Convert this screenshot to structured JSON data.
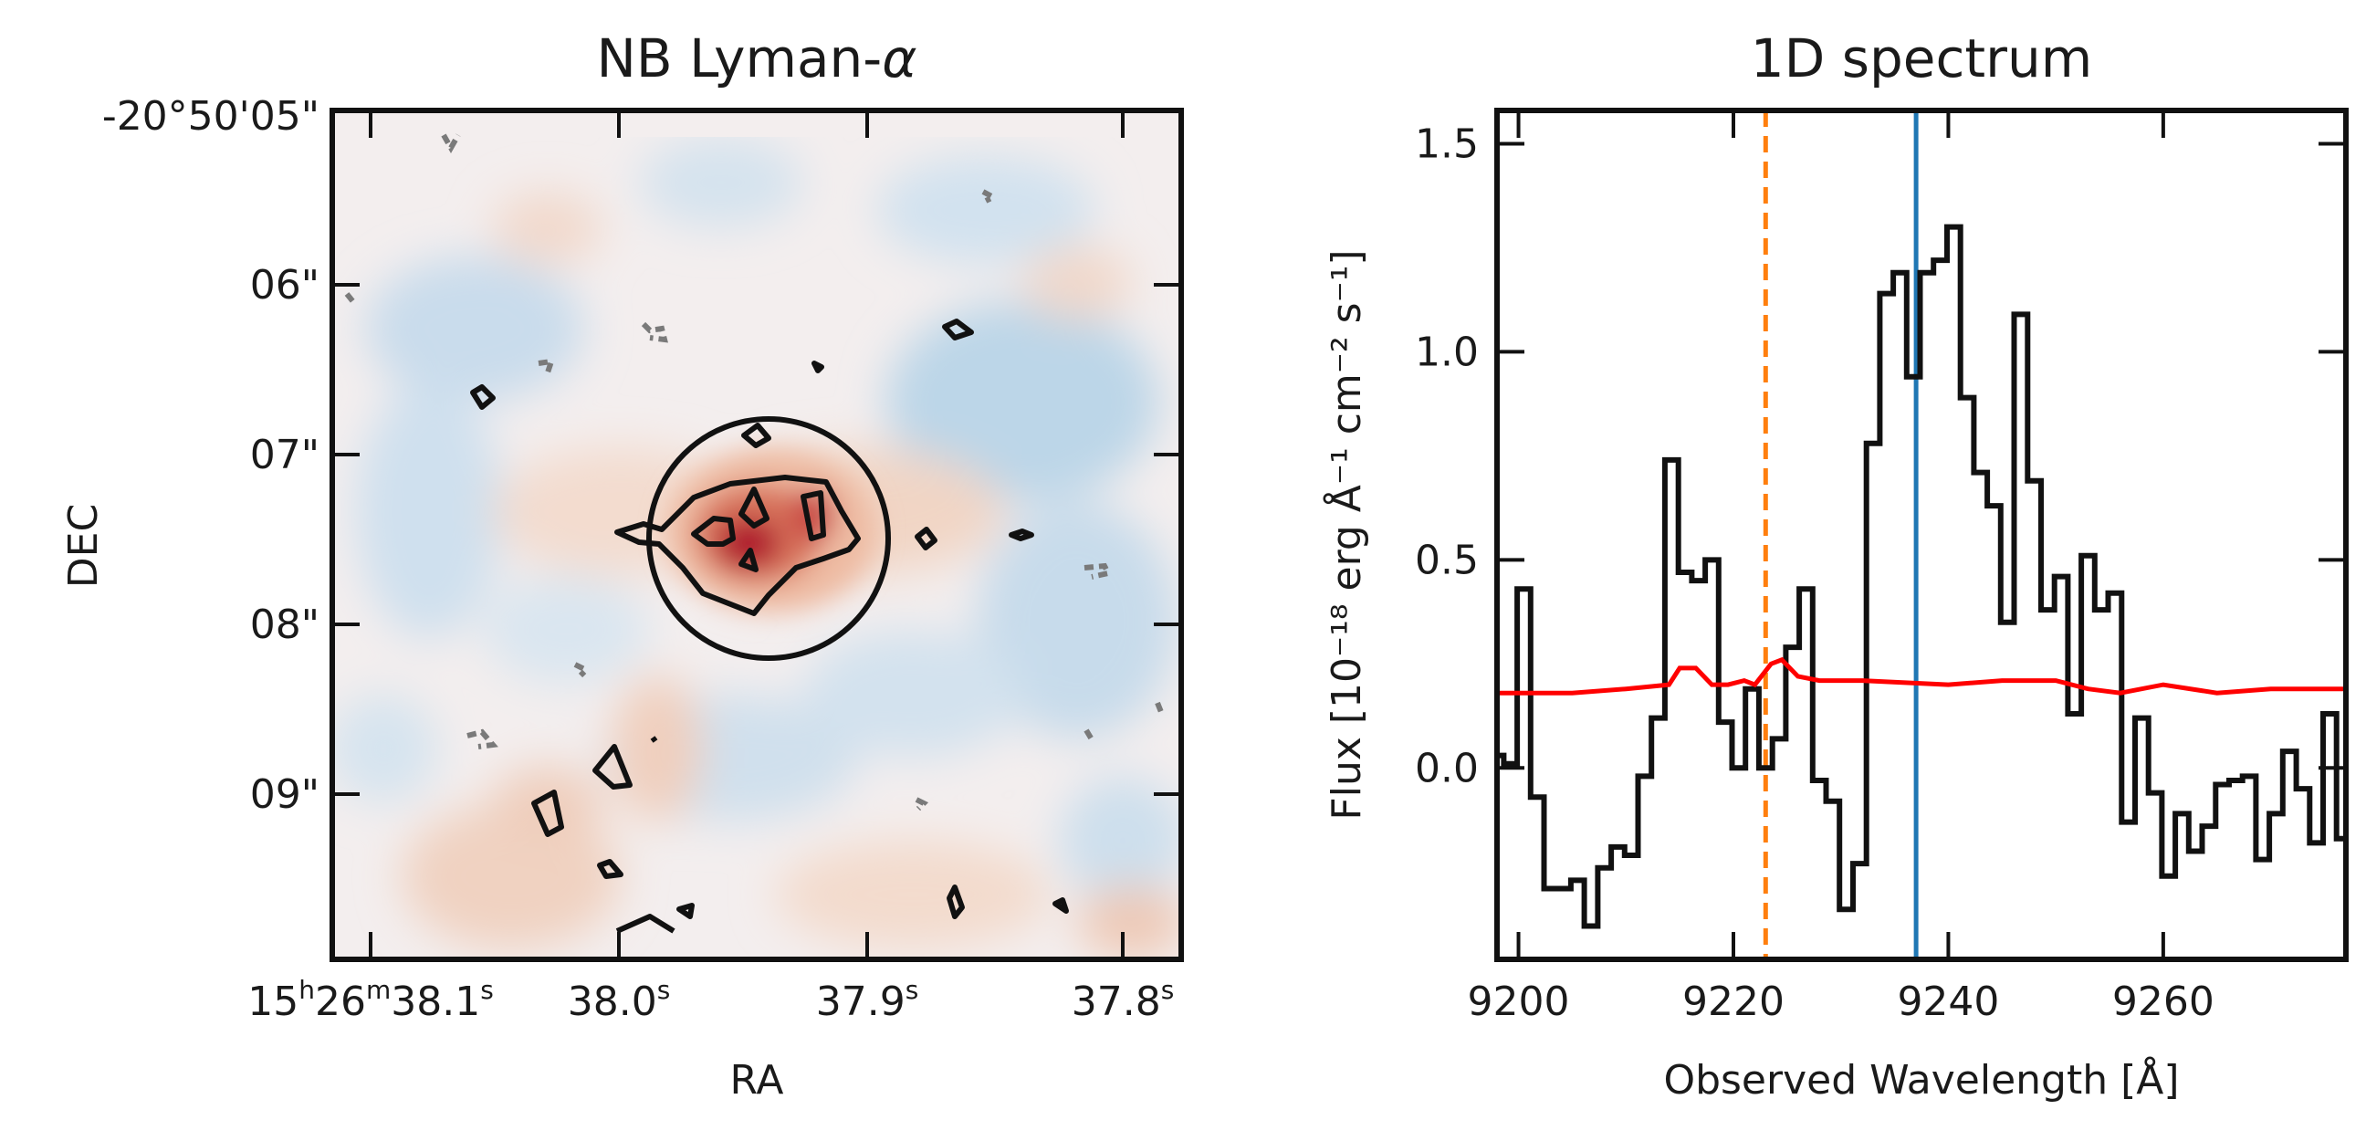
{
  "chart_data": [
    {
      "type": "image",
      "title_text": "NB Lyman-",
      "title_symbol": "α",
      "xlabel": "RA",
      "ylabel": "DEC",
      "x_ticks": [
        {
          "h": "15",
          "hs": "h",
          "m": "26",
          "ms": "m",
          "s": "38.1",
          "ss": "s"
        },
        {
          "s": "38.0",
          "ss": "s"
        },
        {
          "s": "37.9",
          "ss": "s"
        },
        {
          "s": "37.8",
          "ss": "s"
        }
      ],
      "y_ticks": [
        "-20°50'05\"",
        "06\"",
        "07\"",
        "08\"",
        "09\""
      ],
      "colormap": "RdBu_r",
      "contours": {
        "positive_color": "#111111",
        "negative_color": "#7a7a7a",
        "negative_style": "dashed"
      },
      "aperture": {
        "shape": "circle",
        "color": "#111111"
      }
    },
    {
      "type": "line",
      "title": "1D spectrum",
      "xlabel": "Observed Wavelength [Å]",
      "ylabel": "Flux [10⁻¹⁸ erg Å⁻¹ cm⁻² s⁻¹]",
      "xlim": [
        9198,
        9277
      ],
      "ylim": [
        -0.46,
        1.58
      ],
      "x_ticks": [
        9200,
        9220,
        9240,
        9260
      ],
      "y_ticks": [
        1.5,
        1.0,
        0.5,
        0.0
      ],
      "x_tick_labels": [
        "9200",
        "9220",
        "9240",
        "9260"
      ],
      "y_tick_labels": [
        "1.5",
        "1.0",
        "0.5",
        "0.0"
      ],
      "vlines": [
        {
          "name": "dashed-orange-line",
          "x": 9223,
          "color": "#ff7f0e",
          "style": "dashed"
        },
        {
          "name": "blue-line",
          "x": 9237,
          "color": "#1f77b4",
          "style": "solid"
        }
      ],
      "series": [
        {
          "name": "flux",
          "color": "#111111",
          "drawstyle": "steps-mid",
          "x": [
            9198,
            9199.25,
            9200.5,
            9201.75,
            9203,
            9204.25,
            9205.5,
            9206.75,
            9208,
            9209.25,
            9210.5,
            9211.75,
            9213,
            9214.25,
            9215.5,
            9216.75,
            9218,
            9219.25,
            9220.5,
            9221.75,
            9223,
            9224.25,
            9225.5,
            9226.75,
            9228,
            9229.25,
            9230.5,
            9231.75,
            9233,
            9234.25,
            9235.5,
            9236.75,
            9238,
            9239.25,
            9240.5,
            9241.75,
            9243,
            9244.25,
            9245.5,
            9246.75,
            9248,
            9249.25,
            9250.5,
            9251.75,
            9253,
            9254.25,
            9255.5,
            9256.75,
            9258,
            9259.25,
            9260.5,
            9261.75,
            9263,
            9264.25,
            9265.5,
            9266.75,
            9268,
            9269.25,
            9270.5,
            9271.75,
            9273,
            9274.25,
            9275.5,
            9276.75
          ],
          "values": [
            0.03,
            0.01,
            0.43,
            -0.07,
            -0.29,
            -0.29,
            -0.27,
            -0.38,
            -0.24,
            -0.19,
            -0.21,
            -0.02,
            0.12,
            0.74,
            0.47,
            0.45,
            0.5,
            0.11,
            0.0,
            0.19,
            0.0,
            0.07,
            0.29,
            0.43,
            -0.03,
            -0.08,
            -0.34,
            -0.23,
            0.78,
            1.14,
            1.19,
            0.94,
            1.19,
            1.22,
            1.3,
            0.89,
            0.71,
            0.63,
            0.35,
            1.09,
            0.69,
            0.38,
            0.46,
            0.13,
            0.51,
            0.38,
            0.42,
            -0.13,
            0.12,
            -0.06,
            -0.26,
            -0.11,
            -0.2,
            -0.14,
            -0.04,
            -0.03,
            -0.02,
            -0.22,
            -0.11,
            0.04,
            -0.05,
            -0.18,
            0.13,
            -0.17
          ]
        },
        {
          "name": "noise",
          "color": "#ff0000",
          "x": [
            9198,
            9205,
            9210,
            9214,
            9215,
            9216.5,
            9218,
            9219.5,
            9221,
            9222,
            9223.5,
            9224.5,
            9226,
            9228,
            9232,
            9240,
            9245,
            9250,
            9253,
            9256,
            9260,
            9265,
            9270,
            9277
          ],
          "values": [
            0.18,
            0.18,
            0.19,
            0.2,
            0.24,
            0.24,
            0.2,
            0.2,
            0.21,
            0.2,
            0.25,
            0.26,
            0.22,
            0.21,
            0.21,
            0.2,
            0.21,
            0.21,
            0.19,
            0.18,
            0.2,
            0.18,
            0.19,
            0.19
          ]
        }
      ]
    }
  ]
}
